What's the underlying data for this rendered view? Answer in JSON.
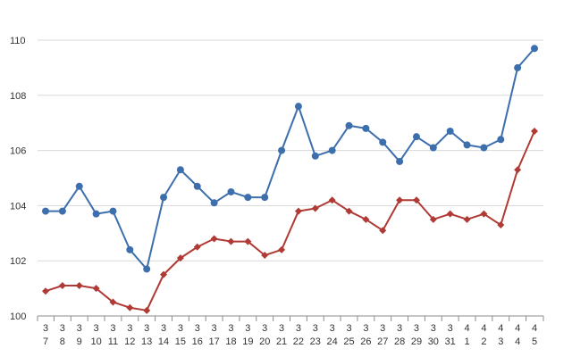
{
  "chart_data": {
    "type": "line",
    "title": "",
    "xlabel": "",
    "ylabel": "",
    "ylim": [
      100,
      110
    ],
    "yticks": [
      100,
      102,
      104,
      106,
      108,
      110
    ],
    "grid": "horizontal",
    "legend": "none",
    "categories": [
      {
        "month": "3",
        "day": "7"
      },
      {
        "month": "3",
        "day": "8"
      },
      {
        "month": "3",
        "day": "9"
      },
      {
        "month": "3",
        "day": "10"
      },
      {
        "month": "3",
        "day": "11"
      },
      {
        "month": "3",
        "day": "12"
      },
      {
        "month": "3",
        "day": "13"
      },
      {
        "month": "3",
        "day": "14"
      },
      {
        "month": "3",
        "day": "15"
      },
      {
        "month": "3",
        "day": "16"
      },
      {
        "month": "3",
        "day": "17"
      },
      {
        "month": "3",
        "day": "18"
      },
      {
        "month": "3",
        "day": "19"
      },
      {
        "month": "3",
        "day": "20"
      },
      {
        "month": "3",
        "day": "21"
      },
      {
        "month": "3",
        "day": "22"
      },
      {
        "month": "3",
        "day": "23"
      },
      {
        "month": "3",
        "day": "24"
      },
      {
        "month": "3",
        "day": "25"
      },
      {
        "month": "3",
        "day": "26"
      },
      {
        "month": "3",
        "day": "27"
      },
      {
        "month": "3",
        "day": "28"
      },
      {
        "month": "3",
        "day": "29"
      },
      {
        "month": "3",
        "day": "30"
      },
      {
        "month": "3",
        "day": "31"
      },
      {
        "month": "4",
        "day": "1"
      },
      {
        "month": "4",
        "day": "2"
      },
      {
        "month": "4",
        "day": "3"
      },
      {
        "month": "4",
        "day": "4"
      },
      {
        "month": "4",
        "day": "5"
      }
    ],
    "series": [
      {
        "color": "#3d6fad",
        "marker": "circle",
        "values": [
          103.8,
          103.8,
          104.7,
          103.7,
          103.8,
          102.4,
          101.7,
          104.3,
          105.3,
          104.7,
          104.1,
          104.5,
          104.3,
          104.3,
          106.0,
          107.6,
          105.8,
          106.0,
          106.9,
          106.8,
          106.3,
          105.6,
          106.5,
          106.1,
          106.7,
          106.2,
          106.1,
          106.4,
          109.0,
          109.7
        ]
      },
      {
        "color": "#b03a35",
        "marker": "diamond",
        "values": [
          100.9,
          101.1,
          101.1,
          101.0,
          100.5,
          100.3,
          100.2,
          101.5,
          102.1,
          102.5,
          102.8,
          102.7,
          102.7,
          102.2,
          102.4,
          103.8,
          103.9,
          104.2,
          103.8,
          103.5,
          103.1,
          104.2,
          104.2,
          103.5,
          103.7,
          103.5,
          103.7,
          103.3,
          105.3,
          106.7
        ]
      }
    ]
  }
}
